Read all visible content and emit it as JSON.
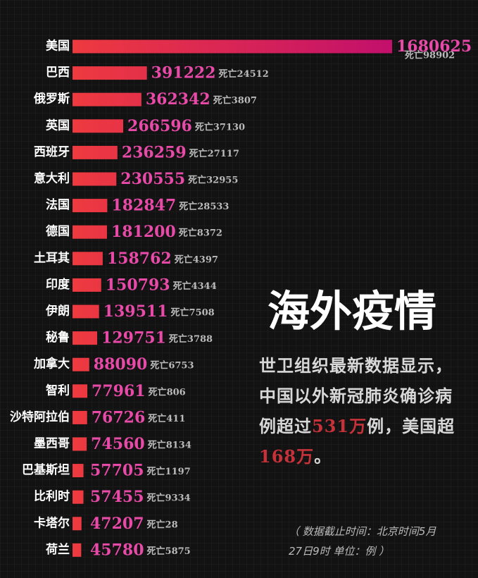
{
  "chart_data": {
    "type": "bar",
    "orientation": "horizontal",
    "title": "海外疫情",
    "categories": [
      "美国",
      "巴西",
      "俄罗斯",
      "英国",
      "西班牙",
      "意大利",
      "法国",
      "德国",
      "土耳其",
      "印度",
      "伊朗",
      "秘鲁",
      "加拿大",
      "智利",
      "沙特阿拉伯",
      "墨西哥",
      "巴基斯坦",
      "比利时",
      "卡塔尔",
      "荷兰"
    ],
    "values": [
      1680625,
      391222,
      362342,
      266596,
      236259,
      230555,
      182847,
      181200,
      158762,
      150793,
      139511,
      129751,
      88090,
      77961,
      76726,
      74560,
      57705,
      57455,
      47207,
      45780
    ],
    "death_labels": [
      "死亡98902",
      "死亡24512",
      "死亡3807",
      "死亡37130",
      "死亡27117",
      "死亡32955",
      "死亡28533",
      "死亡8372",
      "死亡4397",
      "死亡4344",
      "死亡7508",
      "死亡3788",
      "死亡6753",
      "死亡806",
      "死亡411",
      "死亡8134",
      "死亡1197",
      "死亡9334",
      "死亡28",
      "死亡5875"
    ],
    "xlim": [
      0,
      1680625
    ],
    "colors": [
      "#ee3a3f",
      "#c2106c"
    ],
    "value_color": "#e84aa8",
    "summary": [
      {
        "text": "世卫组织最新数据显示，中国以外新冠肺炎确诊病例超过",
        "color": "#d8d8d8"
      },
      {
        "text": "531万",
        "color": "#c7323a"
      },
      {
        "text": "例，美国超",
        "color": "#d8d8d8"
      },
      {
        "text": "168万",
        "color": "#c7323a"
      },
      {
        "text": "。",
        "color": "#d8d8d8"
      }
    ],
    "note": "（ 数据截止时间：北京时间5月27日9时  单位：例 ）"
  }
}
